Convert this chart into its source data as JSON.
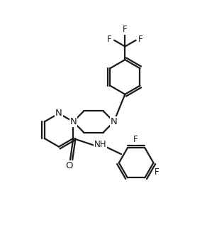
{
  "bg_color": "#ffffff",
  "line_color": "#1a1a1a",
  "line_width": 1.6,
  "font_size": 8.5,
  "figsize": [
    2.92,
    3.55
  ],
  "dpi": 100,
  "xlim": [
    0,
    10
  ],
  "ylim": [
    0,
    12
  ]
}
